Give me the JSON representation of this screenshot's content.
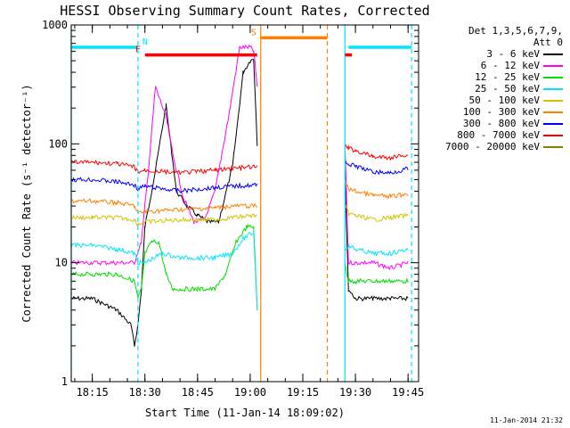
{
  "chart_data": {
    "type": "line",
    "title": "HESSI Observing Summary Count Rates, Corrected",
    "xlabel": "Start Time (11-Jan-14 18:09:02)",
    "ylabel": "Corrected Count Rate (s⁻¹ detector⁻¹)",
    "yscale": "log",
    "ylim": [
      1,
      1000
    ],
    "xlim": [
      "18:09",
      "19:48"
    ],
    "x_ticks": [
      "18:15",
      "18:30",
      "18:45",
      "19:00",
      "19:15",
      "19:30",
      "19:45"
    ],
    "y_ticks": [
      "1",
      "10",
      "100",
      "1000"
    ],
    "grid": false,
    "legend_position": "right",
    "legend_header": [
      "Det 1,3,5,6,7,9,",
      "Att 0"
    ],
    "series": [
      {
        "name": "3 - 6 keV",
        "color": "#000000",
        "x": [
          "18:09",
          "18:15",
          "18:22",
          "18:26",
          "18:27",
          "18:28",
          "18:29",
          "18:30",
          "18:33",
          "18:36",
          "18:39",
          "18:42",
          "18:45",
          "18:48",
          "18:51",
          "18:55",
          "18:58",
          "19:00",
          "19:01",
          "19:02",
          "19:27",
          "19:28",
          "19:30",
          "19:35",
          "19:40",
          "19:45"
        ],
        "y": [
          5,
          5,
          4,
          3,
          2,
          3,
          6,
          20,
          60,
          210,
          40,
          30,
          25,
          22,
          22,
          65,
          400,
          500,
          520,
          100,
          60,
          6,
          5,
          5,
          5,
          5
        ]
      },
      {
        "name": "6 - 12 keV",
        "color": "#ff00ff",
        "x": [
          "18:09",
          "18:15",
          "18:22",
          "18:27",
          "18:29",
          "18:31",
          "18:33",
          "18:36",
          "18:38",
          "18:41",
          "18:44",
          "18:47",
          "18:50",
          "18:54",
          "18:57",
          "19:00",
          "19:01",
          "19:02",
          "19:27",
          "19:28",
          "19:30",
          "19:35",
          "19:40",
          "19:45"
        ],
        "y": [
          10,
          10,
          10,
          10,
          15,
          60,
          300,
          170,
          80,
          35,
          22,
          23,
          40,
          180,
          650,
          650,
          600,
          300,
          100,
          10,
          10,
          10,
          9,
          10
        ]
      },
      {
        "name": "12 - 25 keV",
        "color": "#00dd00",
        "x": [
          "18:09",
          "18:15",
          "18:22",
          "18:27",
          "18:28",
          "18:29",
          "18:30",
          "18:32",
          "18:34",
          "18:36",
          "18:38",
          "18:40",
          "18:45",
          "18:50",
          "18:53",
          "18:56",
          "18:59",
          "19:01",
          "19:02",
          "19:27",
          "19:28",
          "19:30",
          "19:35",
          "19:40",
          "19:45"
        ],
        "y": [
          8,
          8,
          8,
          7,
          5,
          6,
          12,
          15,
          15,
          8,
          6,
          6,
          6,
          6,
          8,
          15,
          20,
          20,
          4,
          10,
          7,
          7,
          7,
          7,
          7
        ]
      },
      {
        "name": "25 - 50 keV",
        "color": "#00e5ff",
        "x": [
          "18:09",
          "18:15",
          "18:22",
          "18:27",
          "18:28",
          "18:30",
          "18:35",
          "18:40",
          "18:45",
          "18:50",
          "18:55",
          "18:58",
          "19:01",
          "19:02",
          "19:27",
          "19:28",
          "19:30",
          "19:35",
          "19:40",
          "19:45"
        ],
        "y": [
          14,
          14,
          13,
          12,
          10,
          10,
          12,
          11,
          11,
          11,
          12,
          16,
          18,
          4,
          13,
          14,
          13,
          12,
          12,
          13
        ]
      },
      {
        "name": "50 - 100 keV",
        "color": "#d4c400",
        "x": [
          "18:09",
          "18:15",
          "18:22",
          "18:27",
          "18:28",
          "18:30",
          "18:40",
          "18:50",
          "18:55",
          "19:01",
          "19:02",
          "19:27",
          "19:28",
          "19:30",
          "19:35",
          "19:40",
          "19:45"
        ],
        "y": [
          24,
          24,
          24,
          23,
          21,
          22,
          23,
          23,
          24,
          25,
          25,
          30,
          26,
          25,
          23,
          24,
          25
        ]
      },
      {
        "name": "100 - 300 keV",
        "color": "#ff8000",
        "x": [
          "18:09",
          "18:15",
          "18:22",
          "18:27",
          "18:28",
          "18:30",
          "18:40",
          "18:50",
          "18:55",
          "19:01",
          "19:02",
          "19:27",
          "19:28",
          "19:30",
          "19:35",
          "19:40",
          "19:45"
        ],
        "y": [
          33,
          33,
          32,
          30,
          26,
          27,
          28,
          29,
          30,
          30,
          30,
          48,
          42,
          40,
          37,
          36,
          38
        ]
      },
      {
        "name": "300 - 800 keV",
        "color": "#0000ff",
        "x": [
          "18:09",
          "18:15",
          "18:22",
          "18:27",
          "18:28",
          "18:30",
          "18:40",
          "18:50",
          "18:55",
          "19:01",
          "19:02",
          "19:27",
          "19:28",
          "19:30",
          "19:35",
          "19:40",
          "19:45"
        ],
        "y": [
          50,
          50,
          48,
          45,
          42,
          44,
          40,
          43,
          44,
          45,
          45,
          75,
          67,
          65,
          58,
          57,
          62
        ]
      },
      {
        "name": "800 - 7000 keV",
        "color": "#ff0000",
        "x": [
          "18:09",
          "18:15",
          "18:22",
          "18:27",
          "18:28",
          "18:30",
          "18:40",
          "18:50",
          "18:55",
          "19:01",
          "19:02",
          "19:27",
          "19:28",
          "19:30",
          "19:35",
          "19:40",
          "19:45"
        ],
        "y": [
          70,
          70,
          68,
          64,
          58,
          60,
          57,
          60,
          62,
          64,
          64,
          100,
          92,
          88,
          78,
          76,
          82
        ]
      },
      {
        "name": "7000 - 20000 keV",
        "color": "#808000",
        "x": [],
        "y": []
      }
    ],
    "flag_bars": [
      {
        "label": "N",
        "color": "#00e5ff",
        "y": 650,
        "segments": [
          [
            "18:09",
            "18:28"
          ],
          [
            "19:28",
            "19:46"
          ]
        ]
      },
      {
        "label": "F",
        "color": "#ff0000",
        "y": 560,
        "segments": [
          [
            "18:30",
            "19:02"
          ],
          [
            "19:27",
            "19:29"
          ]
        ]
      },
      {
        "label": "S",
        "color": "#ff8000",
        "y": 780,
        "segments": [
          [
            "19:03",
            "19:22"
          ]
        ]
      }
    ],
    "event_lines": [
      {
        "time": "18:09",
        "color": "#00e5ff",
        "style": "solid"
      },
      {
        "time": "18:28",
        "color": "#00e5ff",
        "style": "dashed"
      },
      {
        "time": "19:03",
        "color": "#ff8000",
        "style": "solid"
      },
      {
        "time": "19:22",
        "color": "#ff8000",
        "style": "dashed"
      },
      {
        "time": "19:27",
        "color": "#00e5ff",
        "style": "solid"
      },
      {
        "time": "19:46",
        "color": "#00e5ff",
        "style": "dashed"
      }
    ]
  },
  "footer": {
    "timestamp": "11-Jan-2014 21:32"
  }
}
